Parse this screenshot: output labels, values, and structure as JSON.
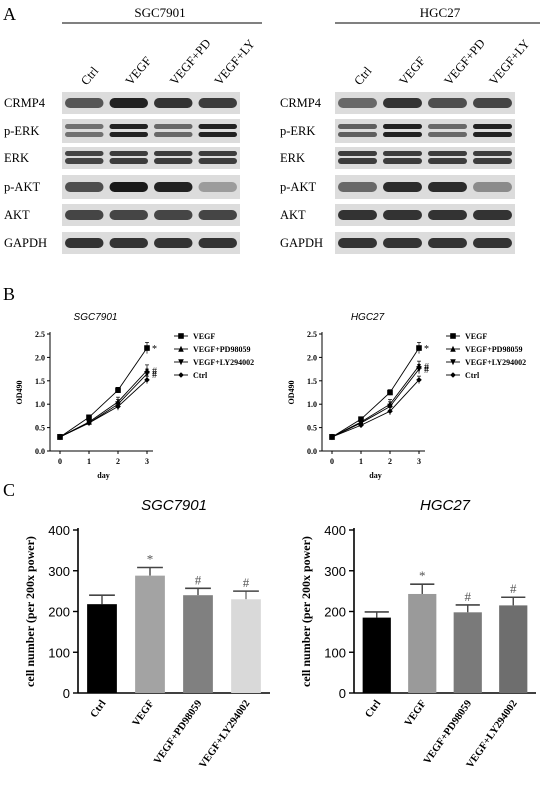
{
  "panels": {
    "a": "A",
    "b": "B",
    "c": "C"
  },
  "western_blot": {
    "lanes": [
      "Ctrl",
      "VEGF",
      "VEGF+PD",
      "VEGF+LY"
    ],
    "rows": [
      "CRMP4",
      "p-ERK",
      "ERK",
      "p-AKT",
      "AKT",
      "GAPDH"
    ],
    "cell_lines": [
      "SGC7901",
      "HGC27"
    ],
    "intensity": {
      "SGC7901": {
        "CRMP4": [
          0.65,
          0.95,
          0.85,
          0.8
        ],
        "p-ERK": [
          0.5,
          0.95,
          0.55,
          0.95
        ],
        "ERK": [
          0.75,
          0.8,
          0.8,
          0.8
        ],
        "p-AKT": [
          0.7,
          1.0,
          0.95,
          0.25
        ],
        "AKT": [
          0.75,
          0.75,
          0.75,
          0.75
        ],
        "GAPDH": [
          0.85,
          0.85,
          0.85,
          0.85
        ]
      },
      "HGC27": {
        "CRMP4": [
          0.55,
          0.85,
          0.7,
          0.75
        ],
        "p-ERK": [
          0.6,
          0.95,
          0.55,
          0.95
        ],
        "ERK": [
          0.8,
          0.8,
          0.8,
          0.8
        ],
        "p-AKT": [
          0.55,
          0.9,
          0.9,
          0.35
        ],
        "AKT": [
          0.85,
          0.85,
          0.85,
          0.85
        ],
        "GAPDH": [
          0.85,
          0.85,
          0.85,
          0.85
        ]
      }
    }
  },
  "chart_data": [
    {
      "type": "line",
      "title": "SGC7901",
      "xlabel": "day",
      "ylabel": "OD490",
      "x": [
        0,
        1,
        2,
        3
      ],
      "xticks": [
        "0",
        "1",
        "2",
        "3"
      ],
      "yticks": [
        "0.0",
        "0.5",
        "1.0",
        "1.5",
        "2.0",
        "2.5"
      ],
      "ylim": [
        0,
        2.5
      ],
      "series": [
        {
          "name": "VEGF",
          "values": [
            0.3,
            0.72,
            1.3,
            2.2
          ],
          "err": [
            0.02,
            0.05,
            0.06,
            0.12
          ],
          "marker": "square",
          "mark": "*"
        },
        {
          "name": "VEGF+PD98059",
          "values": [
            0.3,
            0.62,
            1.05,
            1.72
          ],
          "err": [
            0.02,
            0.05,
            0.1,
            0.12
          ],
          "marker": "triangle-up",
          "mark": "#"
        },
        {
          "name": "VEGF+LY294002",
          "values": [
            0.3,
            0.6,
            1.0,
            1.65
          ],
          "err": [
            0.02,
            0.05,
            0.1,
            0.1
          ],
          "marker": "triangle-down",
          "mark": "#"
        },
        {
          "name": "Ctrl",
          "values": [
            0.3,
            0.6,
            0.95,
            1.52
          ],
          "err": [
            0.02,
            0.05,
            0.08,
            0.08
          ],
          "marker": "diamond"
        }
      ]
    },
    {
      "type": "line",
      "title": "HGC27",
      "xlabel": "day",
      "ylabel": "OD490",
      "x": [
        0,
        1,
        2,
        3
      ],
      "xticks": [
        "0",
        "1",
        "2",
        "3"
      ],
      "yticks": [
        "0.0",
        "0.5",
        "1.0",
        "1.5",
        "2.0",
        "2.5"
      ],
      "ylim": [
        0,
        2.5
      ],
      "series": [
        {
          "name": "VEGF",
          "values": [
            0.3,
            0.68,
            1.25,
            2.2
          ],
          "err": [
            0.02,
            0.05,
            0.06,
            0.12
          ],
          "marker": "square",
          "mark": "*"
        },
        {
          "name": "VEGF+PD98059",
          "values": [
            0.3,
            0.62,
            1.0,
            1.82
          ],
          "err": [
            0.02,
            0.05,
            0.1,
            0.1
          ],
          "marker": "triangle-up",
          "mark": "#"
        },
        {
          "name": "VEGF+LY294002",
          "values": [
            0.3,
            0.6,
            0.95,
            1.75
          ],
          "err": [
            0.02,
            0.05,
            0.1,
            0.1
          ],
          "marker": "triangle-down",
          "mark": "#"
        },
        {
          "name": "Ctrl",
          "values": [
            0.3,
            0.55,
            0.85,
            1.52
          ],
          "err": [
            0.02,
            0.05,
            0.08,
            0.08
          ],
          "marker": "diamond"
        }
      ]
    },
    {
      "type": "bar",
      "title": "SGC7901",
      "ylabel": "cell number (per 200x power)",
      "categories": [
        "Ctrl",
        "VEGF",
        "VEGF+PD98059",
        "VEGF+LY294002"
      ],
      "values": [
        218,
        288,
        240,
        230
      ],
      "errors": [
        22,
        20,
        17,
        20
      ],
      "marks": [
        "",
        "*",
        "#",
        "#"
      ],
      "colors": [
        "#000000",
        "#a3a3a3",
        "#808080",
        "#d9d9d9"
      ],
      "yticks": [
        "0",
        "100",
        "200",
        "300",
        "400"
      ],
      "ylim": [
        0,
        400
      ]
    },
    {
      "type": "bar",
      "title": "HGC27",
      "ylabel": "cell number (per 200x power)",
      "categories": [
        "Ctrl",
        "VEGF",
        "VEGF+PD98059",
        "VEGF+LY294002"
      ],
      "values": [
        185,
        243,
        198,
        215
      ],
      "errors": [
        14,
        24,
        18,
        20
      ],
      "marks": [
        "",
        "*",
        "#",
        "#"
      ],
      "colors": [
        "#000000",
        "#9a9a9a",
        "#7a7a7a",
        "#6e6e6e"
      ],
      "yticks": [
        "0",
        "100",
        "200",
        "300",
        "400"
      ],
      "ylim": [
        0,
        400
      ]
    }
  ]
}
